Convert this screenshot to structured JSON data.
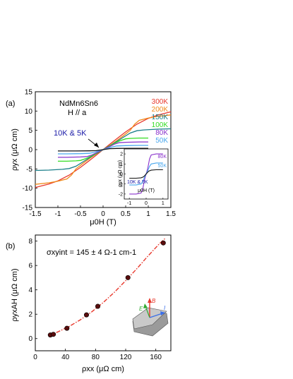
{
  "chart_data": [
    {
      "type": "line",
      "panel_label": "(a)",
      "title": "NdMn6Sn6",
      "subtitle": "H // a",
      "xlabel": "μ0H (T)",
      "ylabel": "ρyx (μΩ cm)",
      "xlim": [
        -1.5,
        1.5
      ],
      "ylim": [
        -15,
        15
      ],
      "xticks": [
        -1.5,
        -1.0,
        -0.5,
        0.0,
        0.5,
        1.0,
        1.5
      ],
      "yticks": [
        -15,
        -10,
        -5,
        0,
        5,
        10,
        15
      ],
      "grid": false,
      "annotation": "10K & 5K",
      "series": [
        {
          "name": "300K",
          "color": "#e8382c",
          "x": [
            -1.5,
            -1.2,
            -1.0,
            -0.75,
            -0.5,
            -0.3,
            -0.15,
            0,
            0.15,
            0.3,
            0.5,
            0.75,
            1.0,
            1.2,
            1.5
          ],
          "y": [
            -9.8,
            -8.9,
            -8.1,
            -6.6,
            -4.6,
            -2.8,
            -1.4,
            0,
            1.4,
            2.8,
            4.6,
            6.6,
            8.1,
            8.9,
            9.8
          ]
        },
        {
          "name": "200K",
          "color": "#f08a1a",
          "x": [
            -1.5,
            -1.2,
            -1.0,
            -0.8,
            -0.7,
            -0.6,
            -0.45,
            -0.3,
            -0.15,
            0,
            0.15,
            0.3,
            0.45,
            0.6,
            0.7,
            0.8,
            1.0,
            1.2,
            1.5
          ],
          "y": [
            -9.0,
            -8.6,
            -8.2,
            -7.6,
            -6.6,
            -5.0,
            -3.6,
            -2.3,
            -1.1,
            0,
            1.1,
            2.3,
            3.6,
            5.0,
            6.6,
            7.6,
            8.2,
            8.6,
            9.0
          ]
        },
        {
          "name": "150K",
          "color": "#1a7f8a",
          "x": [
            -1.5,
            -1.2,
            -0.9,
            -0.75,
            -0.6,
            -0.45,
            -0.3,
            -0.15,
            0,
            0.15,
            0.3,
            0.45,
            0.6,
            0.75,
            0.9,
            1.2,
            1.5
          ],
          "y": [
            -5.4,
            -5.3,
            -5.1,
            -4.9,
            -4.3,
            -3.2,
            -2.1,
            -1.0,
            0,
            1.0,
            2.1,
            3.2,
            4.3,
            4.9,
            5.1,
            5.3,
            5.4
          ]
        },
        {
          "name": "100K",
          "color": "#33dd22",
          "x": [
            -1.0,
            -0.8,
            -0.6,
            -0.5,
            -0.35,
            -0.2,
            -0.1,
            0,
            0.1,
            0.2,
            0.35,
            0.5,
            0.6,
            0.8,
            1.0
          ],
          "y": [
            -3.0,
            -3.0,
            -2.9,
            -2.8,
            -2.2,
            -1.3,
            -0.6,
            0,
            0.6,
            1.3,
            2.2,
            2.8,
            2.9,
            3.0,
            3.0
          ]
        },
        {
          "name": "80K",
          "color": "#8a33cc",
          "x": [
            -1.0,
            -0.8,
            -0.5,
            -0.35,
            -0.25,
            -0.15,
            -0.05,
            0,
            0.05,
            0.15,
            0.25,
            0.35,
            0.5,
            0.8,
            1.0
          ],
          "y": [
            -2.0,
            -2.0,
            -1.9,
            -1.8,
            -1.4,
            -0.8,
            -0.25,
            0,
            0.25,
            0.8,
            1.4,
            1.8,
            1.9,
            2.0,
            2.0
          ]
        },
        {
          "name": "50K",
          "color": "#4aa8ee",
          "x": [
            -1.0,
            -0.8,
            -0.5,
            -0.3,
            -0.2,
            -0.1,
            0,
            0.1,
            0.2,
            0.3,
            0.5,
            0.8,
            1.0
          ],
          "y": [
            -1.1,
            -1.1,
            -1.05,
            -0.95,
            -0.7,
            -0.35,
            0,
            0.35,
            0.7,
            0.95,
            1.05,
            1.1,
            1.1
          ]
        },
        {
          "name": "10K & 5K",
          "color": "#111111",
          "x": [
            -1.0,
            -0.6,
            -0.3,
            -0.15,
            -0.05,
            0,
            0.05,
            0.15,
            0.3,
            0.6,
            1.0
          ],
          "y": [
            -0.35,
            -0.35,
            -0.32,
            -0.25,
            -0.1,
            0,
            0.1,
            0.25,
            0.32,
            0.35,
            0.35
          ]
        }
      ],
      "legend_labels": [
        {
          "text": "300K",
          "color": "#e8382c"
        },
        {
          "text": "200K",
          "color": "#f08a1a"
        },
        {
          "text": "150K",
          "color": "#1a7f8a"
        },
        {
          "text": "100K",
          "color": "#33dd22"
        },
        {
          "text": "80K",
          "color": "#8a33cc"
        },
        {
          "text": "50K",
          "color": "#4aa8ee"
        }
      ],
      "inset": {
        "xlabel": "μ0H (T)",
        "ylabel": "ρyx (μΩ cm)",
        "xlim": [
          -1.3,
          1.3
        ],
        "ylim": [
          -2.5,
          2.5
        ],
        "xticks": [
          -1,
          0,
          1
        ],
        "yticks": [
          -2,
          -1,
          0,
          1,
          2
        ],
        "annotation": "10K & 5K",
        "labels": [
          {
            "text": "80K",
            "color": "#8a33cc"
          },
          {
            "text": "50K",
            "color": "#4aa8ee"
          }
        ],
        "series": [
          {
            "color": "#8a33cc",
            "x": [
              -1.0,
              -0.6,
              -0.3,
              -0.2,
              -0.1,
              0,
              0.1,
              0.2,
              0.3,
              0.6,
              1.0
            ],
            "y": [
              -2.0,
              -2.0,
              -1.9,
              -1.5,
              -0.6,
              0,
              0.6,
              1.5,
              1.9,
              2.0,
              2.0
            ]
          },
          {
            "color": "#4aa8ee",
            "x": [
              -1.0,
              -0.6,
              -0.3,
              -0.2,
              -0.1,
              0,
              0.1,
              0.2,
              0.3,
              0.6,
              1.0
            ],
            "y": [
              -1.1,
              -1.1,
              -1.0,
              -0.75,
              -0.35,
              0,
              0.35,
              0.75,
              1.0,
              1.1,
              1.1
            ]
          },
          {
            "color": "#111111",
            "x": [
              -1.0,
              -0.6,
              -0.3,
              -0.15,
              -0.05,
              0,
              0.05,
              0.15,
              0.3,
              0.6,
              1.0
            ],
            "y": [
              -0.42,
              -0.42,
              -0.38,
              -0.28,
              -0.1,
              0,
              0.1,
              0.28,
              0.38,
              0.42,
              0.42
            ]
          }
        ]
      }
    },
    {
      "type": "scatter",
      "panel_label": "(b)",
      "xlabel": "ρxx (μΩ cm)",
      "ylabel": "ρyxAH (μΩ cm)",
      "annotation": "σxyint = 145 ± 4 Ω-1 cm-1",
      "xlim": [
        0,
        180
      ],
      "ylim": [
        -1,
        8.5
      ],
      "xticks": [
        0,
        40,
        80,
        120,
        160
      ],
      "yticks": [
        0,
        2,
        4,
        6,
        8
      ],
      "grid": false,
      "points": {
        "x": [
          20,
          24,
          42,
          68,
          83,
          123,
          170
        ],
        "y": [
          0.3,
          0.35,
          0.85,
          1.95,
          2.65,
          5.0,
          7.85
        ]
      },
      "fit": {
        "color": "#e8382c",
        "x": [
          18,
          30,
          45,
          60,
          75,
          90,
          105,
          120,
          135,
          150,
          165,
          172
        ],
        "y": [
          0.22,
          0.55,
          1.0,
          1.55,
          2.2,
          2.95,
          3.8,
          4.75,
          5.75,
          6.8,
          7.8,
          8.2
        ]
      },
      "schematic": {
        "labels": [
          "E",
          "B",
          "I"
        ],
        "colors": {
          "E": "#33aa33",
          "B": "#e8382c",
          "I": "#3a6ee8"
        }
      }
    }
  ]
}
